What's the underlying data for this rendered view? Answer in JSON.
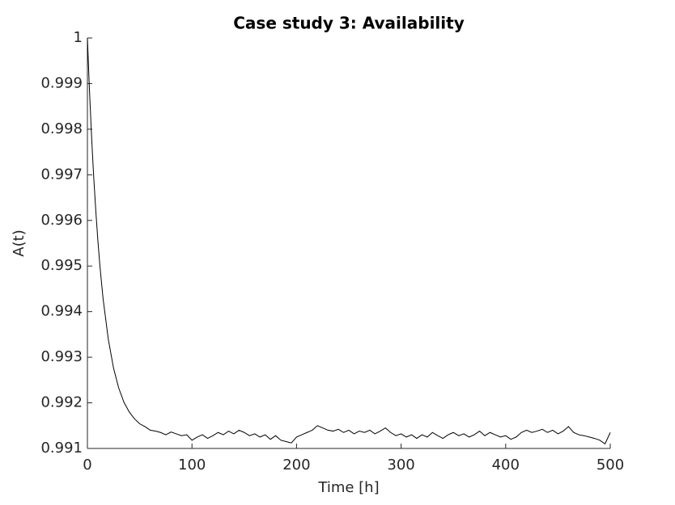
{
  "chart_data": {
    "type": "line",
    "title": "Case study 3: Availability",
    "x_label": "Time [h]",
    "y_label": "A(t)",
    "x": [
      0,
      2,
      4,
      6,
      8,
      10,
      12,
      15,
      20,
      25,
      30,
      35,
      40,
      45,
      50,
      55,
      60,
      65,
      70,
      75,
      80,
      85,
      90,
      95,
      100,
      105,
      110,
      115,
      120,
      125,
      130,
      135,
      140,
      145,
      150,
      155,
      160,
      165,
      170,
      175,
      180,
      185,
      190,
      195,
      200,
      205,
      210,
      215,
      220,
      225,
      230,
      235,
      240,
      245,
      250,
      255,
      260,
      265,
      270,
      275,
      280,
      285,
      290,
      295,
      300,
      305,
      310,
      315,
      320,
      325,
      330,
      335,
      340,
      345,
      350,
      355,
      360,
      365,
      370,
      375,
      380,
      385,
      390,
      395,
      400,
      405,
      410,
      415,
      420,
      425,
      430,
      435,
      440,
      445,
      450,
      455,
      460,
      465,
      470,
      475,
      480,
      485,
      490,
      495,
      500
    ],
    "series": [
      {
        "name": "A(t)",
        "color": "#000000",
        "values": [
          1.0,
          0.99884,
          0.99783,
          0.99696,
          0.99622,
          0.99556,
          0.99499,
          0.99428,
          0.99339,
          0.99276,
          0.99232,
          0.99201,
          0.9918,
          0.99165,
          0.99154,
          0.99148,
          0.9914,
          0.99138,
          0.99135,
          0.9913,
          0.99136,
          0.99132,
          0.99128,
          0.9913,
          0.99118,
          0.99125,
          0.9913,
          0.99122,
          0.99128,
          0.99135,
          0.9913,
          0.99138,
          0.99132,
          0.9914,
          0.99135,
          0.99128,
          0.99132,
          0.99125,
          0.9913,
          0.9912,
          0.99128,
          0.99118,
          0.99115,
          0.99112,
          0.99125,
          0.9913,
          0.99135,
          0.9914,
          0.9915,
          0.99145,
          0.9914,
          0.99138,
          0.99142,
          0.99135,
          0.9914,
          0.99132,
          0.99138,
          0.99135,
          0.9914,
          0.99132,
          0.99138,
          0.99145,
          0.99135,
          0.99128,
          0.99132,
          0.99125,
          0.9913,
          0.99122,
          0.9913,
          0.99125,
          0.99135,
          0.99128,
          0.99122,
          0.9913,
          0.99135,
          0.99128,
          0.99132,
          0.99125,
          0.9913,
          0.99138,
          0.99128,
          0.99135,
          0.9913,
          0.99125,
          0.99128,
          0.9912,
          0.99125,
          0.99135,
          0.9914,
          0.99135,
          0.99138,
          0.99142,
          0.99135,
          0.9914,
          0.99132,
          0.99138,
          0.99148,
          0.99135,
          0.9913,
          0.99128,
          0.99125,
          0.99122,
          0.99118,
          0.9911,
          0.99135
        ]
      }
    ],
    "xlim": [
      0,
      500
    ],
    "xticks": [
      0,
      100,
      200,
      300,
      400,
      500
    ],
    "ylim": [
      0.991,
      1
    ],
    "yticks": [
      0.991,
      0.992,
      0.993,
      0.994,
      0.995,
      0.996,
      0.997,
      0.998,
      0.999,
      1
    ],
    "grid": false
  }
}
